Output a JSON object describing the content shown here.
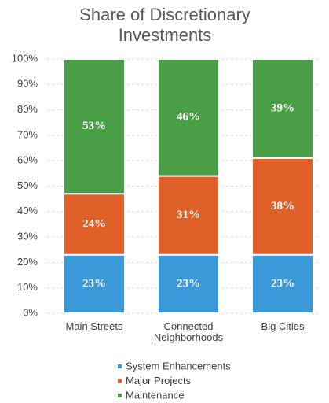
{
  "chart_data": {
    "type": "stacked_bar",
    "title": "Share of Discretionary Investments",
    "categories": [
      "Main Streets",
      "Connected Neighborhoods",
      "Big Cities"
    ],
    "series": [
      {
        "name": "System Enhancements",
        "color": "#3a9ad9",
        "values": [
          23,
          23,
          23
        ],
        "value_labels": [
          "23%",
          "23%",
          "23%"
        ]
      },
      {
        "name": "Major Projects",
        "color": "#e0602a",
        "values": [
          24,
          31,
          38
        ],
        "value_labels": [
          "24%",
          "31%",
          "38%"
        ]
      },
      {
        "name": "Maintenance",
        "color": "#4a9e45",
        "values": [
          53,
          46,
          39
        ],
        "value_labels": [
          "53%",
          "46%",
          "39%"
        ]
      }
    ],
    "ylim": [
      0,
      100
    ],
    "yticks": [
      {
        "value": 0,
        "label": "0%"
      },
      {
        "value": 10,
        "label": "10%"
      },
      {
        "value": 20,
        "label": "20%"
      },
      {
        "value": 30,
        "label": "30%"
      },
      {
        "value": 40,
        "label": "40%"
      },
      {
        "value": 50,
        "label": "50%"
      },
      {
        "value": 60,
        "label": "60%"
      },
      {
        "value": 70,
        "label": "70%"
      },
      {
        "value": 80,
        "label": "80%"
      },
      {
        "value": 90,
        "label": "90%"
      },
      {
        "value": 100,
        "label": "100%"
      }
    ],
    "grid": true,
    "legend": "bottom"
  }
}
